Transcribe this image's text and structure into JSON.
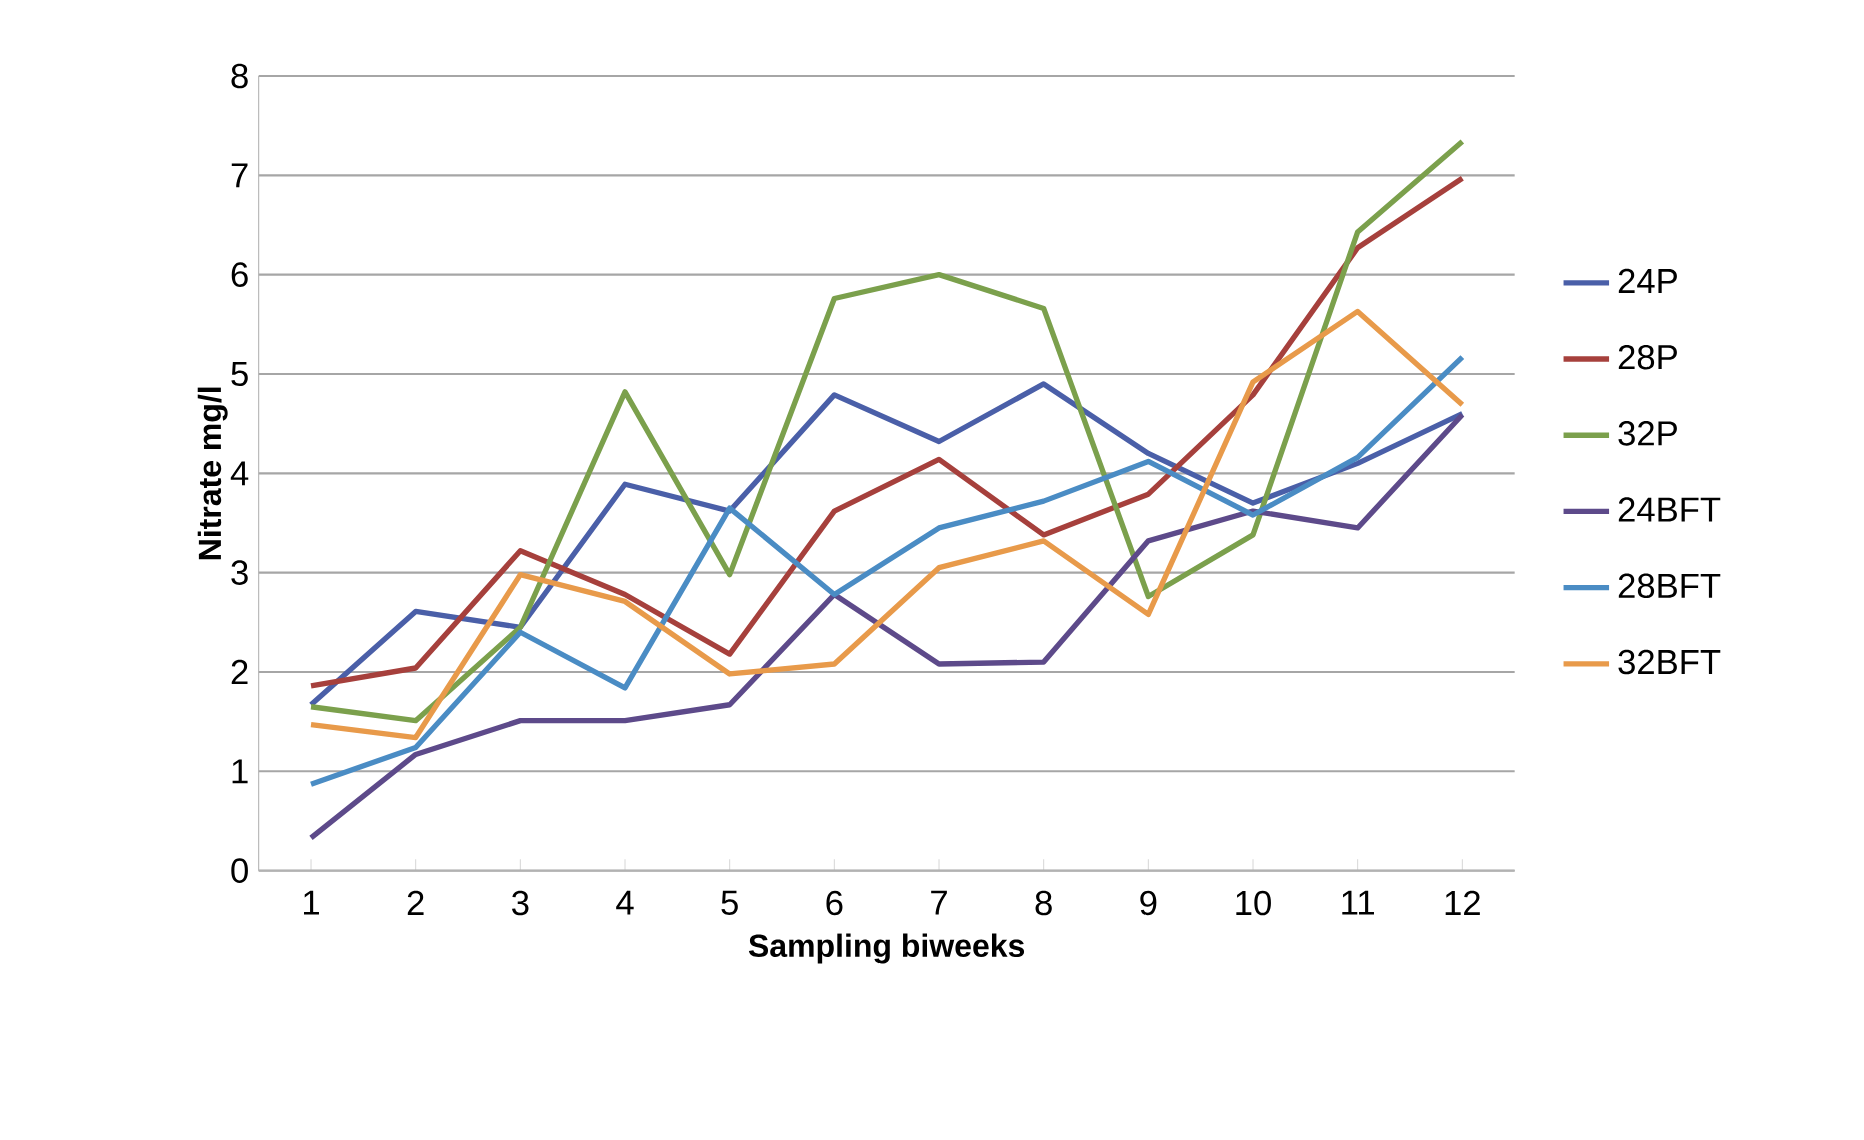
{
  "chart_data": {
    "type": "line",
    "xlabel": "Sampling biweeks",
    "ylabel": "Nitrate mg/l",
    "categories": [
      "1",
      "2",
      "3",
      "4",
      "5",
      "6",
      "7",
      "8",
      "9",
      "10",
      "11",
      "12"
    ],
    "ylim": [
      0,
      8
    ],
    "yticks": [
      0,
      1,
      2,
      3,
      4,
      5,
      6,
      7,
      8
    ],
    "grid": "y",
    "legend": "right",
    "marker": "none",
    "line_style": "solid",
    "series": [
      {
        "name": "24P",
        "color": "#4a5fa8",
        "values": [
          1.67,
          2.61,
          2.45,
          3.89,
          3.62,
          4.79,
          4.32,
          4.9,
          4.2,
          3.7,
          4.1,
          4.6
        ]
      },
      {
        "name": "28P",
        "color": "#a6403c",
        "values": [
          1.86,
          2.04,
          3.22,
          2.78,
          2.18,
          3.62,
          4.14,
          3.38,
          3.79,
          4.79,
          6.27,
          6.97
        ]
      },
      {
        "name": "32P",
        "color": "#7ba04c",
        "values": [
          1.65,
          1.51,
          2.45,
          4.82,
          2.98,
          5.76,
          6.0,
          5.66,
          2.76,
          3.38,
          6.43,
          7.34
        ]
      },
      {
        "name": "24BFT",
        "color": "#5d4a8a",
        "values": [
          0.33,
          1.17,
          1.51,
          1.51,
          1.67,
          2.78,
          2.08,
          2.1,
          3.32,
          3.62,
          3.45,
          4.59
        ]
      },
      {
        "name": "28BFT",
        "color": "#4a8cc4",
        "values": [
          0.87,
          1.24,
          2.4,
          1.84,
          3.65,
          2.78,
          3.45,
          3.72,
          4.12,
          3.58,
          4.16,
          5.17
        ]
      },
      {
        "name": "32BFT",
        "color": "#e89a4a",
        "values": [
          1.47,
          1.34,
          2.98,
          2.71,
          1.98,
          2.08,
          3.05,
          3.32,
          2.58,
          4.92,
          5.63,
          4.69
        ]
      }
    ]
  }
}
